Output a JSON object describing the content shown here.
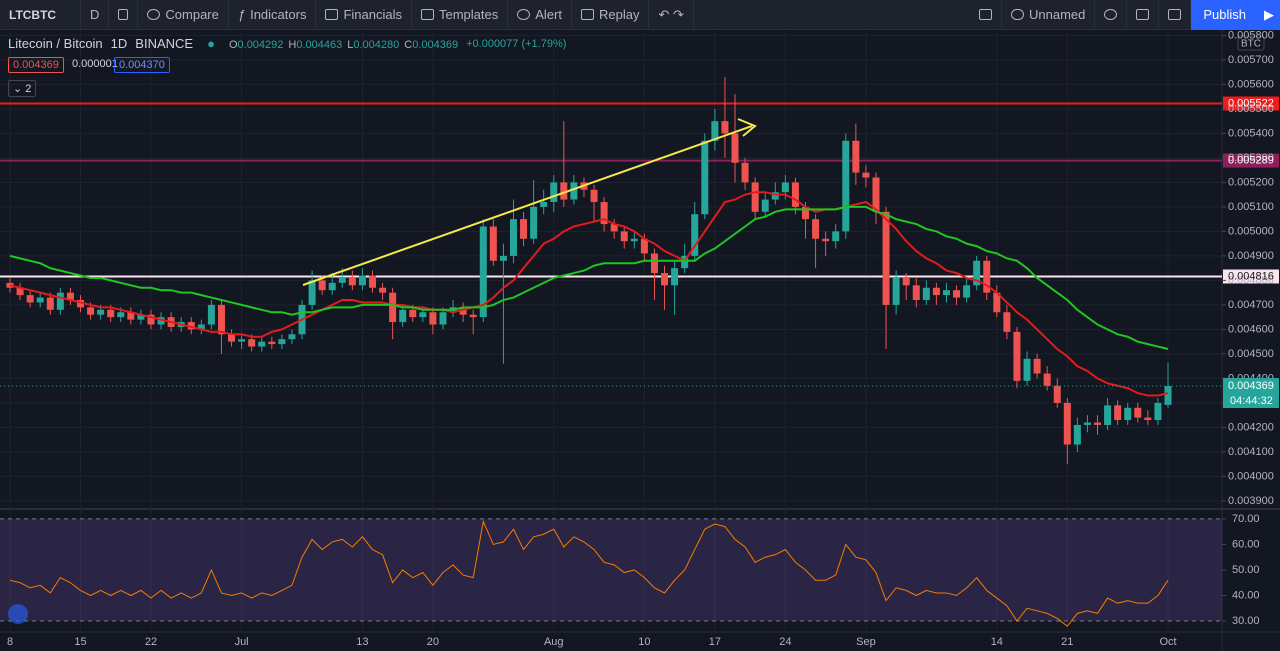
{
  "toolbar": {
    "symbol": "LTCBTC",
    "interval": "D",
    "compare": "Compare",
    "indicators": "Indicators",
    "financials": "Financials",
    "templates": "Templates",
    "alert": "Alert",
    "replay": "Replay",
    "layout": "Unnamed",
    "publish": "Publish"
  },
  "legend": {
    "name": "Litecoin / Bitcoin",
    "interval": "1D",
    "exchange": "BINANCE",
    "ohlc": [
      {
        "key": "O",
        "value": "0.004292"
      },
      {
        "key": "H",
        "value": "0.004463"
      },
      {
        "key": "L",
        "value": "0.004280"
      },
      {
        "key": "C",
        "value": "0.004369"
      }
    ],
    "change": "+0.000077 (+1.79%)",
    "bid": "0.004369",
    "spread": "0.000001",
    "ask": "0.004370",
    "indicators": "2",
    "currency": "BTC",
    "countdown": "04:44:32"
  },
  "chart_data": [
    {
      "type": "candlestick",
      "up_color": "#26a69a",
      "down_color": "#ef5350",
      "grid": true,
      "categories": [
        "8",
        null,
        null,
        null,
        null,
        null,
        null,
        "15",
        null,
        null,
        null,
        null,
        null,
        null,
        "22",
        null,
        null,
        null,
        null,
        null,
        null,
        null,
        null,
        "Jul",
        null,
        null,
        null,
        null,
        null,
        null,
        null,
        null,
        null,
        null,
        null,
        "13",
        null,
        null,
        null,
        null,
        null,
        null,
        "20",
        null,
        null,
        null,
        null,
        null,
        null,
        null,
        null,
        null,
        null,
        null,
        "Aug",
        null,
        null,
        null,
        null,
        null,
        null,
        null,
        null,
        "10",
        null,
        null,
        null,
        null,
        null,
        null,
        "17",
        null,
        null,
        null,
        null,
        null,
        null,
        "24",
        null,
        null,
        null,
        null,
        null,
        null,
        null,
        "Sep",
        null,
        null,
        null,
        null,
        null,
        null,
        null,
        null,
        null,
        null,
        null,
        null,
        "14",
        null,
        null,
        null,
        null,
        null,
        null,
        "21",
        null,
        null,
        null,
        null,
        null,
        null,
        null,
        null,
        null,
        "Oct"
      ],
      "open": [
        0.00479,
        0.00477,
        0.00474,
        0.00471,
        0.00473,
        0.00468,
        0.00475,
        0.00472,
        0.00469,
        0.00466,
        0.00468,
        0.00465,
        0.00467,
        0.00464,
        0.00466,
        0.00462,
        0.00465,
        0.00461,
        0.00463,
        0.0046,
        0.00462,
        0.0047,
        0.00458,
        0.00455,
        0.00456,
        0.00453,
        0.00455,
        0.00454,
        0.00456,
        0.00458,
        0.0047,
        0.0048,
        0.00476,
        0.00479,
        0.00481,
        0.00478,
        0.00482,
        0.00477,
        0.00475,
        0.00463,
        0.00468,
        0.00465,
        0.00467,
        0.00462,
        0.00467,
        0.00469,
        0.00466,
        0.00465,
        0.00502,
        0.00488,
        0.0049,
        0.00505,
        0.00497,
        0.0051,
        0.00512,
        0.0052,
        0.00513,
        0.0052,
        0.00517,
        0.00512,
        0.00503,
        0.005,
        0.00496,
        0.00497,
        0.00491,
        0.00483,
        0.00478,
        0.00485,
        0.0049,
        0.00507,
        0.00537,
        0.00545,
        0.0054,
        0.00528,
        0.0052,
        0.00508,
        0.00513,
        0.00516,
        0.0052,
        0.0051,
        0.00505,
        0.00497,
        0.00496,
        0.005,
        0.00537,
        0.00524,
        0.00522,
        0.00508,
        0.0047,
        0.00481,
        0.00478,
        0.00472,
        0.00477,
        0.00474,
        0.00476,
        0.00473,
        0.00478,
        0.00488,
        0.00475,
        0.00467,
        0.00459,
        0.00439,
        0.00448,
        0.00442,
        0.00437,
        0.0043,
        0.00413,
        0.00421,
        0.00422,
        0.00421,
        0.00429,
        0.00423,
        0.00428,
        0.00424,
        0.00423,
        0.004292
      ],
      "high": [
        0.00481,
        0.00479,
        0.00476,
        0.00475,
        0.00475,
        0.00477,
        0.00477,
        0.00474,
        0.00471,
        0.0047,
        0.0047,
        0.00469,
        0.00469,
        0.00468,
        0.00468,
        0.00467,
        0.00467,
        0.00465,
        0.00465,
        0.00464,
        0.00472,
        0.00472,
        0.0046,
        0.00458,
        0.00458,
        0.00457,
        0.00457,
        0.00458,
        0.0046,
        0.00472,
        0.00484,
        0.00482,
        0.00483,
        0.00485,
        0.00484,
        0.00485,
        0.00484,
        0.00479,
        0.00477,
        0.0047,
        0.0047,
        0.00469,
        0.00469,
        0.00469,
        0.00472,
        0.00471,
        0.00468,
        0.00505,
        0.00505,
        0.00495,
        0.00513,
        0.00508,
        0.00521,
        0.00517,
        0.00523,
        0.00545,
        0.00523,
        0.00522,
        0.00519,
        0.00514,
        0.00505,
        0.00502,
        0.005,
        0.00499,
        0.00493,
        0.00486,
        0.00488,
        0.00495,
        0.00512,
        0.0054,
        0.0055,
        0.00563,
        0.00556,
        0.0053,
        0.00522,
        0.00516,
        0.0052,
        0.00523,
        0.00522,
        0.00512,
        0.00507,
        0.005,
        0.00503,
        0.0054,
        0.00544,
        0.00527,
        0.00524,
        0.0051,
        0.00484,
        0.00483,
        0.00481,
        0.0048,
        0.00479,
        0.00479,
        0.00478,
        0.00481,
        0.0049,
        0.0049,
        0.00478,
        0.0047,
        0.00461,
        0.00451,
        0.0045,
        0.00445,
        0.0044,
        0.00432,
        0.00424,
        0.00425,
        0.00425,
        0.00432,
        0.00431,
        0.0043,
        0.0043,
        0.00427,
        0.00432,
        0.004463
      ],
      "low": [
        0.00475,
        0.00472,
        0.00469,
        0.00469,
        0.00466,
        0.00466,
        0.0047,
        0.00467,
        0.00464,
        0.00464,
        0.00463,
        0.00463,
        0.00462,
        0.00462,
        0.0046,
        0.0046,
        0.00459,
        0.00459,
        0.00458,
        0.00458,
        0.0046,
        0.0045,
        0.00453,
        0.00452,
        0.00451,
        0.00451,
        0.00452,
        0.00452,
        0.00454,
        0.00456,
        0.00468,
        0.00474,
        0.00474,
        0.00477,
        0.00476,
        0.00476,
        0.00475,
        0.00472,
        0.00456,
        0.00461,
        0.00463,
        0.00463,
        0.00458,
        0.0046,
        0.00465,
        0.00463,
        0.00458,
        0.00463,
        0.00486,
        0.00446,
        0.00487,
        0.00494,
        0.00495,
        0.00507,
        0.00508,
        0.0051,
        0.00511,
        0.00514,
        0.00504,
        0.005,
        0.00497,
        0.00493,
        0.00493,
        0.00488,
        0.00472,
        0.00468,
        0.00466,
        0.00483,
        0.00488,
        0.00505,
        0.00533,
        0.0053,
        0.0052,
        0.00517,
        0.00505,
        0.00506,
        0.00511,
        0.00513,
        0.00507,
        0.00497,
        0.00485,
        0.0049,
        0.00493,
        0.00497,
        0.00519,
        0.00518,
        0.00503,
        0.00452,
        0.00466,
        0.00472,
        0.00469,
        0.0047,
        0.0047,
        0.00471,
        0.0047,
        0.00471,
        0.00476,
        0.00472,
        0.00465,
        0.00456,
        0.00436,
        0.00437,
        0.0044,
        0.00435,
        0.00428,
        0.00405,
        0.0041,
        0.00418,
        0.00417,
        0.00419,
        0.00421,
        0.00421,
        0.00422,
        0.00421,
        0.00421,
        0.00428
      ],
      "close": [
        0.00477,
        0.00474,
        0.00471,
        0.00473,
        0.00468,
        0.00475,
        0.00472,
        0.00469,
        0.00466,
        0.00468,
        0.00465,
        0.00467,
        0.00464,
        0.00466,
        0.00462,
        0.00465,
        0.00461,
        0.00463,
        0.0046,
        0.00462,
        0.0047,
        0.00458,
        0.00455,
        0.00456,
        0.00453,
        0.00455,
        0.00454,
        0.00456,
        0.00458,
        0.0047,
        0.0048,
        0.00476,
        0.00479,
        0.00481,
        0.00478,
        0.00482,
        0.00477,
        0.00475,
        0.00463,
        0.00468,
        0.00465,
        0.00467,
        0.00462,
        0.00467,
        0.00469,
        0.00466,
        0.00465,
        0.00502,
        0.00488,
        0.0049,
        0.00505,
        0.00497,
        0.0051,
        0.00512,
        0.0052,
        0.00513,
        0.0052,
        0.00517,
        0.00512,
        0.00503,
        0.005,
        0.00496,
        0.00497,
        0.00491,
        0.00483,
        0.00478,
        0.00485,
        0.0049,
        0.00507,
        0.00537,
        0.00545,
        0.0054,
        0.00528,
        0.0052,
        0.00508,
        0.00513,
        0.00516,
        0.0052,
        0.0051,
        0.00505,
        0.00497,
        0.00496,
        0.005,
        0.00537,
        0.00524,
        0.00522,
        0.00508,
        0.0047,
        0.00481,
        0.00478,
        0.00472,
        0.00477,
        0.00474,
        0.00476,
        0.00473,
        0.00478,
        0.00488,
        0.00475,
        0.00467,
        0.00459,
        0.00439,
        0.00448,
        0.00442,
        0.00437,
        0.0043,
        0.00413,
        0.00421,
        0.00422,
        0.00421,
        0.00429,
        0.00423,
        0.00428,
        0.00424,
        0.00423,
        0.0043,
        0.004369
      ],
      "lines": [
        {
          "color": "#e21c1c",
          "values": [
            0.00478,
            0.00477,
            0.00476,
            0.00475,
            0.00474,
            0.00473,
            0.00472,
            0.00471,
            0.0047,
            0.00469,
            0.00469,
            0.00468,
            0.00467,
            0.00466,
            0.00465,
            0.00464,
            0.00463,
            0.00462,
            0.00461,
            0.0046,
            0.00459,
            0.00459,
            0.00458,
            0.00458,
            0.00457,
            0.00457,
            0.00459,
            0.0046,
            0.00462,
            0.00464,
            0.00466,
            0.00468,
            0.0047,
            0.00472,
            0.00472,
            0.00471,
            0.00471,
            0.00471,
            0.0047,
            0.0047,
            0.00469,
            0.00469,
            0.00468,
            0.00468,
            0.00467,
            0.00468,
            0.00469,
            0.0047,
            0.00473,
            0.00477,
            0.0048,
            0.00485,
            0.0049,
            0.00495,
            0.00497,
            0.005,
            0.00502,
            0.00503,
            0.00504,
            0.00505,
            0.00503,
            0.00502,
            0.005,
            0.00497,
            0.00495,
            0.00492,
            0.0049,
            0.00488,
            0.00494,
            0.005,
            0.00506,
            0.00512,
            0.00513,
            0.00515,
            0.00516,
            0.00516,
            0.00515,
            0.00515,
            0.00513,
            0.0051,
            0.00508,
            0.00509,
            0.00509,
            0.0051,
            0.00511,
            0.00512,
            0.00509,
            0.00505,
            0.00501,
            0.00496,
            0.00492,
            0.00489,
            0.00487,
            0.00484,
            0.00483,
            0.00481,
            0.0048,
            0.00478,
            0.00475,
            0.00471,
            0.00467,
            0.00464,
            0.0046,
            0.00456,
            0.00452,
            0.00449,
            0.00445,
            0.00443,
            0.0044,
            0.00438,
            0.00437,
            0.00436,
            0.00434,
            0.00433,
            0.00433,
            0.00434
          ]
        },
        {
          "color": "#21c521",
          "values": [
            0.0049,
            0.00489,
            0.00488,
            0.00487,
            0.00485,
            0.00484,
            0.00483,
            0.00482,
            0.00481,
            0.00481,
            0.0048,
            0.00479,
            0.00478,
            0.00477,
            0.00477,
            0.00476,
            0.00476,
            0.00475,
            0.00475,
            0.00474,
            0.00473,
            0.00472,
            0.00471,
            0.0047,
            0.00469,
            0.00468,
            0.00467,
            0.00467,
            0.00466,
            0.00467,
            0.00467,
            0.00468,
            0.00469,
            0.00469,
            0.00469,
            0.0047,
            0.0047,
            0.0047,
            0.0047,
            0.00469,
            0.00469,
            0.00468,
            0.00468,
            0.00468,
            0.00468,
            0.00469,
            0.00469,
            0.00469,
            0.0047,
            0.00472,
            0.00473,
            0.00475,
            0.00477,
            0.00479,
            0.00481,
            0.00482,
            0.00483,
            0.00484,
            0.00486,
            0.00487,
            0.00487,
            0.00487,
            0.00487,
            0.00488,
            0.00488,
            0.00488,
            0.00488,
            0.00488,
            0.00488,
            0.00491,
            0.00493,
            0.00496,
            0.00499,
            0.00502,
            0.00505,
            0.00506,
            0.00508,
            0.00509,
            0.00509,
            0.00509,
            0.00509,
            0.00509,
            0.00509,
            0.0051,
            0.0051,
            0.0051,
            0.00508,
            0.00507,
            0.00505,
            0.00504,
            0.00503,
            0.00501,
            0.005,
            0.00498,
            0.00497,
            0.00495,
            0.00494,
            0.00492,
            0.00491,
            0.00489,
            0.00488,
            0.00485,
            0.00481,
            0.00478,
            0.00475,
            0.00472,
            0.00468,
            0.00465,
            0.00462,
            0.0046,
            0.00458,
            0.00457,
            0.00455,
            0.00454,
            0.00453,
            0.00452
          ]
        }
      ],
      "hlines": [
        {
          "value": 0.005522,
          "color": "#f21b1b"
        },
        {
          "value": 0.005289,
          "color": "#8e1e5c"
        },
        {
          "value": 0.004816,
          "color": "#fce4ec"
        }
      ],
      "ylim": [
        0.003871,
        0.005818
      ],
      "yticks": [
        {
          "value": 0.0039,
          "label": "0.003900"
        },
        {
          "value": 0.004,
          "label": "0.004000"
        },
        {
          "value": 0.0041,
          "label": "0.004100"
        },
        {
          "value": 0.0042,
          "label": "0.004200"
        },
        {
          "value": 0.0043,
          "label": "0.004300"
        },
        {
          "value": 0.0044,
          "label": "0.004400"
        },
        {
          "value": 0.0045,
          "label": "0.004500"
        },
        {
          "value": 0.0046,
          "label": "0.004600"
        },
        {
          "value": 0.0047,
          "label": "0.004700"
        },
        {
          "value": 0.0048,
          "label": "0.004800"
        },
        {
          "value": 0.0049,
          "label": "0.004900"
        },
        {
          "value": 0.005,
          "label": "0.005000"
        },
        {
          "value": 0.0051,
          "label": "0.005100"
        },
        {
          "value": 0.0052,
          "label": "0.005200"
        },
        {
          "value": 0.0053,
          "label": "0.005300"
        },
        {
          "value": 0.0054,
          "label": "0.005400"
        },
        {
          "value": 0.0055,
          "label": "0.005500"
        },
        {
          "value": 0.0056,
          "label": "0.005600"
        },
        {
          "value": 0.0057,
          "label": "0.005700"
        },
        {
          "value": 0.0058,
          "label": "0.005800"
        }
      ]
    },
    {
      "type": "line",
      "color": "#f57c00",
      "band": [
        30,
        70
      ],
      "values": [
        46,
        45,
        43,
        44,
        41,
        47,
        45,
        42,
        40,
        42,
        40,
        42,
        40,
        42,
        39,
        42,
        39,
        41,
        39,
        41,
        50,
        41,
        40,
        41,
        39,
        41,
        40,
        42,
        44,
        55,
        62,
        58,
        61,
        62,
        59,
        63,
        58,
        56,
        45,
        50,
        47,
        49,
        44,
        49,
        52,
        48,
        47,
        69,
        60,
        61,
        66,
        58,
        63,
        64,
        66,
        59,
        63,
        61,
        58,
        53,
        52,
        49,
        50,
        47,
        43,
        41,
        46,
        50,
        58,
        66,
        68,
        67,
        62,
        59,
        53,
        55,
        56,
        58,
        53,
        50,
        46,
        46,
        48,
        60,
        55,
        54,
        49,
        38,
        43,
        42,
        40,
        42,
        41,
        41,
        40,
        43,
        47,
        42,
        39,
        36,
        30,
        35,
        34,
        33,
        31,
        28,
        33,
        34,
        33,
        39,
        37,
        38,
        37,
        37,
        40,
        46
      ],
      "ylim": [
        25.7,
        73.5
      ],
      "yticks": [
        {
          "value": 30,
          "label": "30.00"
        },
        {
          "value": 40,
          "label": "40.00"
        },
        {
          "value": 50,
          "label": "50.00"
        },
        {
          "value": 60,
          "label": "60.00"
        },
        {
          "value": 70,
          "label": "70.00"
        }
      ]
    }
  ]
}
